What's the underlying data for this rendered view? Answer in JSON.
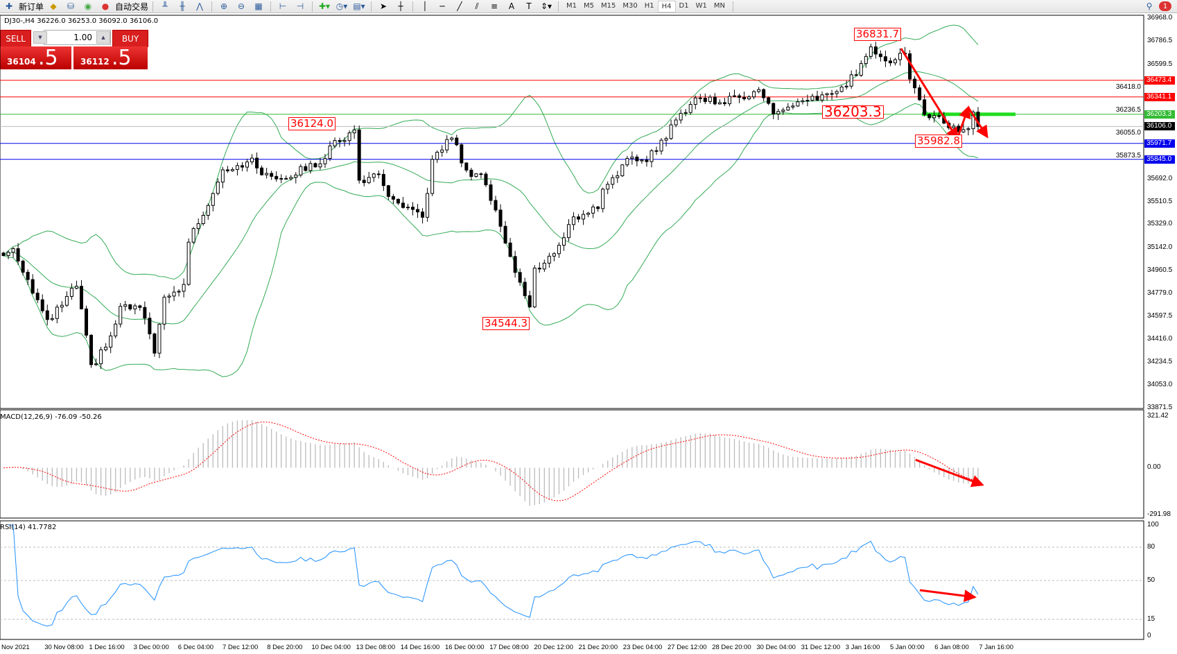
{
  "toolbar": {
    "new_order": "新订单",
    "auto_trading": "自动交易",
    "timeframes": [
      "M1",
      "M5",
      "M15",
      "M30",
      "H1",
      "H4",
      "D1",
      "W1",
      "MN"
    ],
    "active_timeframe": "H4",
    "notification_count": "1"
  },
  "chart": {
    "title": "DJ30-,H4  36226.0 36253.0 36092.0 36106.0",
    "symbol": "DJ30-",
    "timeframe": "H4"
  },
  "trade_panel": {
    "sell_label": "SELL",
    "buy_label": "BUY",
    "lot": "1.00",
    "sell_main": "36104",
    "sell_frac": ".5",
    "buy_main": "36112",
    "buy_frac": ".5"
  },
  "price_axis": [
    "36968.0",
    "36786.5",
    "36599.5",
    "36418.0",
    "36236.5",
    "36055.0",
    "35873.5",
    "35692.0",
    "35510.5",
    "35329.0",
    "35142.0",
    "34960.5",
    "34779.0",
    "34597.5",
    "34416.0",
    "34234.5",
    "34053.0",
    "33871.5"
  ],
  "levels": [
    {
      "value": "36473.4",
      "color": "#ff0000"
    },
    {
      "value": "36341.1",
      "color": "#ff0000"
    },
    {
      "value": "36203.3",
      "color": "#33bb33"
    },
    {
      "value": "36106.0",
      "color": "#000000"
    },
    {
      "value": "35971.7",
      "color": "#0000ee"
    },
    {
      "value": "35845.0",
      "color": "#0000ee"
    }
  ],
  "annotations": [
    "36831.7",
    "36124.0",
    "34544.3",
    "36203.3",
    "35982.8"
  ],
  "macd": {
    "label": "MACD(12,26,9) -76.09 -50.26",
    "axis": [
      "321.42",
      "0.00",
      "-291.98"
    ]
  },
  "rsi": {
    "label": "RSI(14) 41.7782",
    "axis": [
      "100",
      "80",
      "50",
      "15",
      "0"
    ]
  },
  "time_axis": [
    "Nov 2021",
    "30 Nov 08:00",
    "1 Dec 16:00",
    "3 Dec 00:00",
    "6 Dec 04:00",
    "7 Dec 12:00",
    "8 Dec 20:00",
    "10 Dec 04:00",
    "13 Dec 08:00",
    "14 Dec 16:00",
    "16 Dec 00:00",
    "17 Dec 08:00",
    "20 Dec 12:00",
    "21 Dec 20:00",
    "23 Dec 04:00",
    "27 Dec 12:00",
    "28 Dec 20:00",
    "30 Dec 04:00",
    "31 Dec 12:00",
    "3 Jan 16:00",
    "5 Jan 00:00",
    "6 Jan 08:00",
    "7 Jan 16:00"
  ],
  "chart_data": {
    "type": "candlestick",
    "close_path": [
      [
        0,
        35080
      ],
      [
        2,
        35140
      ],
      [
        7,
        34722
      ],
      [
        9,
        34543
      ],
      [
        15,
        34842
      ],
      [
        17,
        34423
      ],
      [
        18,
        34185
      ],
      [
        22,
        34423
      ],
      [
        24,
        34663
      ],
      [
        28,
        34663
      ],
      [
        31,
        34334
      ],
      [
        33,
        34722
      ],
      [
        37,
        34842
      ],
      [
        38,
        35200
      ],
      [
        42,
        35499
      ],
      [
        45,
        35768
      ],
      [
        51,
        35827
      ],
      [
        54,
        35708
      ],
      [
        58,
        35708
      ],
      [
        65,
        35827
      ],
      [
        68,
        35976
      ],
      [
        72,
        36066
      ],
      [
        73,
        35678
      ],
      [
        77,
        35708
      ],
      [
        80,
        35499
      ],
      [
        86,
        35379
      ],
      [
        88,
        35827
      ],
      [
        92,
        36036
      ],
      [
        95,
        35738
      ],
      [
        98,
        35738
      ],
      [
        102,
        35320
      ],
      [
        105,
        34961
      ],
      [
        108,
        34663
      ],
      [
        109,
        34961
      ],
      [
        114,
        35140
      ],
      [
        116,
        35349
      ],
      [
        122,
        35469
      ],
      [
        123,
        35619
      ],
      [
        128,
        35827
      ],
      [
        132,
        35857
      ],
      [
        135,
        35976
      ],
      [
        138,
        36155
      ],
      [
        142,
        36334
      ],
      [
        148,
        36304
      ],
      [
        155,
        36394
      ],
      [
        158,
        36215
      ],
      [
        163,
        36274
      ],
      [
        169,
        36364
      ],
      [
        172,
        36394
      ],
      [
        175,
        36543
      ],
      [
        178,
        36722
      ],
      [
        182,
        36633
      ],
      [
        185,
        36692
      ],
      [
        186,
        36484
      ],
      [
        189,
        36215
      ],
      [
        192,
        36155
      ],
      [
        195,
        36096
      ],
      [
        198,
        36066
      ],
      [
        199,
        36215
      ],
      [
        200,
        36106
      ]
    ],
    "ylim": [
      33871.5,
      36968.0
    ],
    "indicators": [
      "Bollinger Bands",
      "MACD(12,26,9)",
      "RSI(14)"
    ],
    "colors": {
      "bands": "#33aa55",
      "signal": "#ff0000",
      "histogram": "#bbbbbb",
      "rsi": "#1e90ff",
      "arrows": "#ff0000"
    }
  }
}
